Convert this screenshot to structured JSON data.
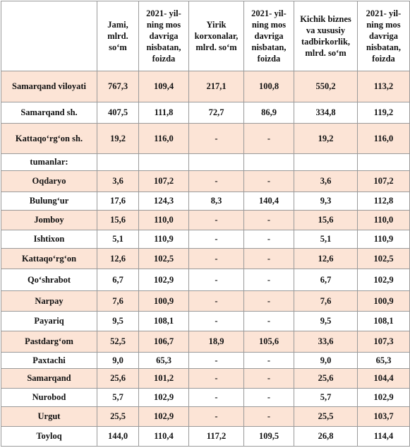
{
  "table": {
    "header": [
      "Jami, mlrd. so‘m",
      "2021- yil-ning mos davriga nisbatan, foizda",
      "Yirik korxonalar, mlrd. so‘m",
      "2021- yil-ning mos davriga nisbatan, foizda",
      "Kichik biznes va xususiy tadbirkorlik, mlrd. so‘m",
      "2021- yil-ning mos davriga nisbatan, foizda"
    ],
    "rows": [
      {
        "label": "Samarqand viloyati",
        "values": [
          "767,3",
          "109,4",
          "217,1",
          "100,8",
          "550,2",
          "113,2"
        ]
      },
      {
        "label": "Samarqand sh.",
        "values": [
          "407,5",
          "111,8",
          "72,7",
          "86,9",
          "334,8",
          "119,2"
        ]
      },
      {
        "label": "Kattaqo‘rg‘on sh.",
        "values": [
          "19,2",
          "116,0",
          "-",
          "-",
          "19,2",
          "116,0"
        ]
      },
      {
        "label": "tumanlar:"
      },
      {
        "label": "Oqdaryo",
        "values": [
          "3,6",
          "107,2",
          "-",
          "-",
          "3,6",
          "107,2"
        ]
      },
      {
        "label": "Bulung‘ur",
        "values": [
          "17,6",
          "124,3",
          "8,3",
          "140,4",
          "9,3",
          "112,8"
        ]
      },
      {
        "label": "Jomboy",
        "values": [
          "15,6",
          "110,0",
          "-",
          "-",
          "15,6",
          "110,0"
        ]
      },
      {
        "label": "Ishtixon",
        "values": [
          "5,1",
          "110,9",
          "-",
          "-",
          "5,1",
          "110,9"
        ]
      },
      {
        "label": "Kattaqo‘rg‘on",
        "values": [
          "12,6",
          "102,5",
          "-",
          "-",
          "12,6",
          "102,5"
        ]
      },
      {
        "label": "Qo‘shrabot",
        "values": [
          "6,7",
          "102,9",
          "-",
          "-",
          "6,7",
          "102,9"
        ]
      },
      {
        "label": "Narpay",
        "values": [
          "7,6",
          "100,9",
          "-",
          "-",
          "7,6",
          "100,9"
        ]
      },
      {
        "label": "Payariq",
        "values": [
          "9,5",
          "108,1",
          "-",
          "-",
          "9,5",
          "108,1"
        ]
      },
      {
        "label": "Pastdarg‘om",
        "values": [
          "52,5",
          "106,7",
          "18,9",
          "105,6",
          "33,6",
          "107,3"
        ]
      },
      {
        "label": "Paxtachi",
        "values": [
          "9,0",
          "65,3",
          "-",
          "-",
          "9,0",
          "65,3"
        ]
      },
      {
        "label": "Samarqand",
        "values": [
          "25,6",
          "101,2",
          "-",
          "-",
          "25,6",
          "104,4"
        ]
      },
      {
        "label": "Nurobod",
        "values": [
          "5,7",
          "102,9",
          "-",
          "-",
          "5,7",
          "102,9"
        ]
      },
      {
        "label": "Urgut",
        "values": [
          "25,5",
          "102,9",
          "-",
          "-",
          "25,5",
          "103,7"
        ]
      },
      {
        "label": "Toyloq",
        "values": [
          "144,0",
          "110,4",
          "117,2",
          "109,5",
          "26,8",
          "114,4"
        ]
      }
    ]
  }
}
